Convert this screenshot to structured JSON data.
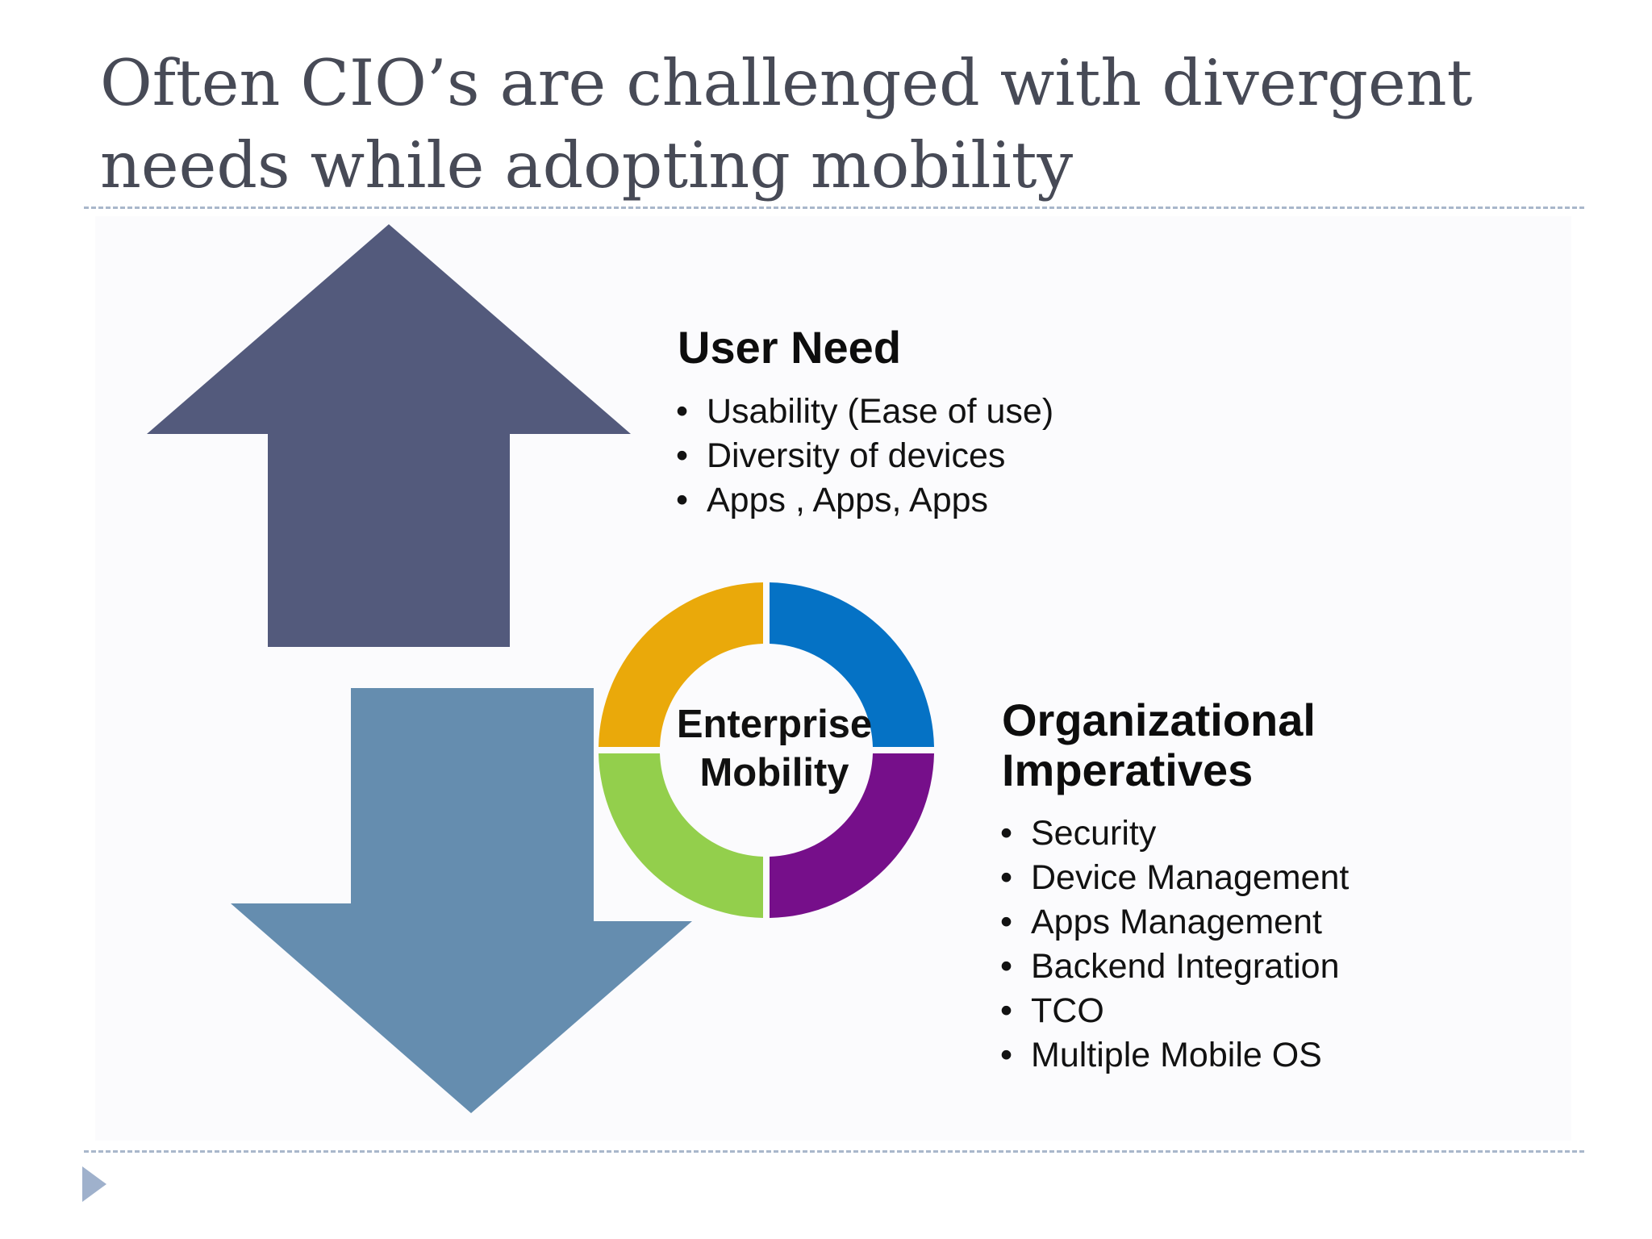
{
  "slide": {
    "title_lines": [
      "Often CIO’s are challenged with divergent",
      "needs while adopting mobility"
    ]
  },
  "diagram": {
    "center_label_lines": [
      "Enterprise",
      "Mobility"
    ],
    "ring_segment_colors": {
      "top_left": "#eaa90a",
      "top_right": "#0572c5",
      "bottom_right": "#760f8a",
      "bottom_left": "#93cf4c"
    },
    "up_arrow_color": "#535a7c",
    "down_arrow_color": "#658daf"
  },
  "user_need": {
    "heading": "User Need",
    "items": [
      "Usability (Ease of use)",
      "Diversity of devices",
      "Apps , Apps, Apps"
    ]
  },
  "organizational_imperatives": {
    "heading_lines": [
      "Organizational",
      "Imperatives"
    ],
    "items": [
      "Security",
      "Device Management",
      "Apps Management",
      "Backend Integration",
      "TCO",
      "Multiple Mobile OS"
    ]
  },
  "footer": {
    "nav_icon": "triangle-right-icon"
  }
}
